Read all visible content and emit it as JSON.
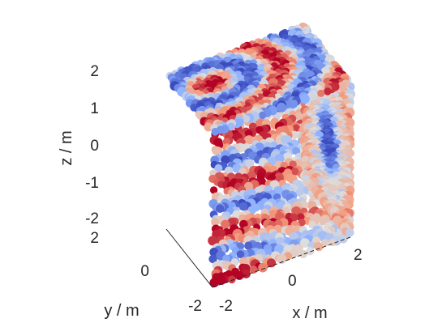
{
  "chart_data": {
    "type": "scatter",
    "projection": "3d",
    "marker": "filled circles",
    "colormap": "coolwarm (blue = low, red = high)",
    "colors": {
      "low": "#3b4cc0",
      "mid": "#dddddd",
      "high": "#b40426",
      "axis": "#262626"
    },
    "xlabel": "x / m",
    "ylabel": "y / m",
    "zlabel": "z / m",
    "xlim": [
      -2,
      2
    ],
    "ylim": [
      -2,
      2
    ],
    "zlim": [
      -2,
      2
    ],
    "xticks": [
      "-2",
      "0",
      "2"
    ],
    "yticks": [
      "-2",
      "0",
      "2"
    ],
    "zticks": [
      "-2",
      "-1",
      "0",
      "1",
      "2"
    ],
    "grid": false,
    "legend": "none",
    "faces": [
      {
        "name": "x = +2 face",
        "pattern": "single large low-value (blue) disk centred on the face, ringed by light and pale-red values"
      },
      {
        "name": "y = -2 face",
        "pattern": "alternating horizontal bands of high (red) and low (blue) values"
      },
      {
        "name": "z = +2 face",
        "pattern": "concentric curved rings of alternating red and blue values"
      }
    ]
  }
}
